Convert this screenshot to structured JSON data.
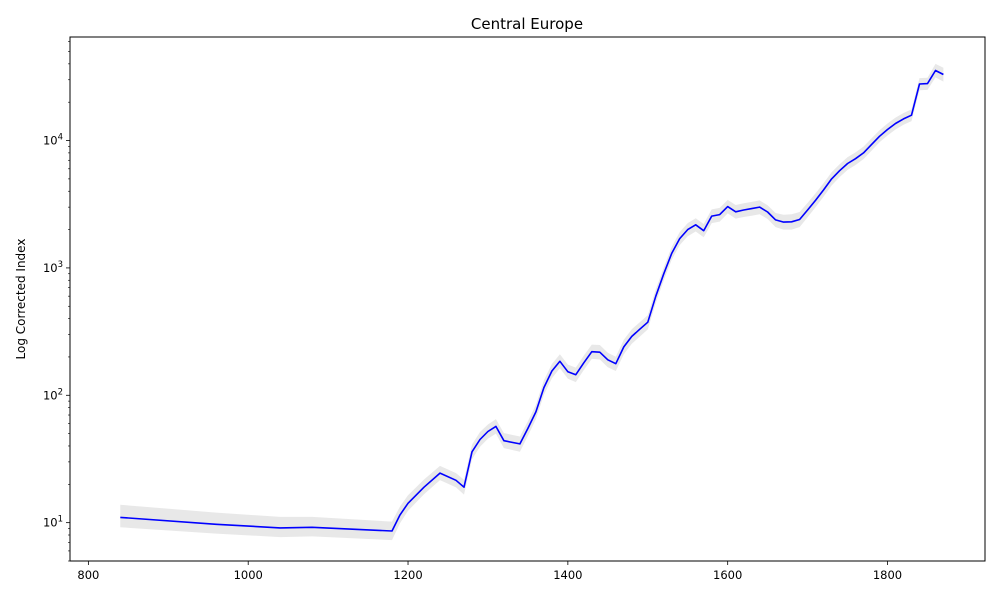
{
  "chart_data": {
    "type": "line",
    "title": "Central Europe",
    "xlabel": "",
    "ylabel": "Log Corrected Index",
    "yscale": "log",
    "xlim": [
      777,
      1922
    ],
    "ylim": [
      5,
      65000
    ],
    "x_ticks": [
      800,
      1000,
      1200,
      1400,
      1600,
      1800
    ],
    "x_tick_labels": [
      "800",
      "1000",
      "1200",
      "1400",
      "1600",
      "1800"
    ],
    "y_ticks": [
      10,
      100,
      1000,
      10000
    ],
    "y_tick_labels": [
      {
        "base": "10",
        "exp": "1"
      },
      {
        "base": "10",
        "exp": "2"
      },
      {
        "base": "10",
        "exp": "3"
      },
      {
        "base": "10",
        "exp": "4"
      }
    ],
    "grid": false,
    "legend": "none",
    "colors": {
      "line": "#0000ff",
      "band": "#d9d9d9"
    },
    "series": [
      {
        "x": [
          840,
          960,
          1040,
          1080,
          1180,
          1190,
          1200,
          1220,
          1240,
          1260,
          1270,
          1280,
          1290,
          1300,
          1310,
          1320,
          1340,
          1350,
          1360,
          1370,
          1380,
          1390,
          1400,
          1410,
          1420,
          1430,
          1440,
          1450,
          1460,
          1470,
          1480,
          1490,
          1500,
          1510,
          1520,
          1530,
          1540,
          1550,
          1560,
          1570,
          1580,
          1590,
          1600,
          1610,
          1620,
          1630,
          1640,
          1650,
          1660,
          1670,
          1680,
          1690,
          1700,
          1710,
          1720,
          1730,
          1740,
          1750,
          1760,
          1770,
          1780,
          1790,
          1800,
          1810,
          1820,
          1830,
          1840,
          1850,
          1860,
          1870
        ],
        "y": [
          11,
          9.7,
          9.1,
          9.2,
          8.6,
          11.5,
          14.2,
          19,
          24.5,
          21.5,
          19,
          36,
          45,
          52,
          57,
          44,
          41.5,
          55,
          74,
          115,
          155,
          185,
          153,
          145,
          180,
          220,
          218,
          190,
          177,
          240,
          290,
          330,
          375,
          600,
          900,
          1300,
          1700,
          2000,
          2180,
          1960,
          2550,
          2620,
          3030,
          2760,
          2850,
          2920,
          3000,
          2750,
          2380,
          2290,
          2300,
          2400,
          2850,
          3400,
          4100,
          5000,
          5800,
          6600,
          7200,
          8000,
          9300,
          10800,
          12200,
          13600,
          14800,
          15800,
          27800,
          28000,
          35500,
          33000
        ],
        "lower": [
          9.2,
          8.2,
          7.7,
          7.8,
          7.3,
          9.9,
          12.4,
          16.7,
          21.6,
          18.9,
          16.6,
          31.5,
          39.5,
          45.5,
          50,
          38.5,
          36,
          48,
          65,
          101,
          136,
          163,
          135,
          127,
          158,
          193,
          191,
          166,
          155,
          210,
          254,
          289,
          329,
          530,
          800,
          1160,
          1510,
          1770,
          1930,
          1740,
          2250,
          2310,
          2680,
          2440,
          2510,
          2570,
          2640,
          2420,
          2090,
          2000,
          2000,
          2090,
          2500,
          3000,
          3630,
          4440,
          5160,
          5880,
          6430,
          7150,
          8320,
          9680,
          10950,
          12200,
          13300,
          14200,
          24800,
          25000,
          31300,
          29000
        ],
        "upper": [
          13.8,
          12,
          11.1,
          11.1,
          10.2,
          13.4,
          16.4,
          21.8,
          27.9,
          24.5,
          21.7,
          41,
          51.5,
          59,
          65,
          50.5,
          47.5,
          62.5,
          84,
          131,
          176,
          210,
          174,
          165,
          205,
          250,
          248,
          216,
          201,
          273,
          330,
          375,
          426,
          680,
          1010,
          1460,
          1910,
          2250,
          2450,
          2210,
          2880,
          2960,
          3420,
          3120,
          3220,
          3300,
          3390,
          3110,
          2700,
          2610,
          2640,
          2750,
          3240,
          3850,
          4630,
          5630,
          6520,
          7410,
          8070,
          8960,
          10400,
          12050,
          13600,
          15150,
          16450,
          17550,
          30900,
          31100,
          40000,
          37300
        ]
      }
    ]
  }
}
